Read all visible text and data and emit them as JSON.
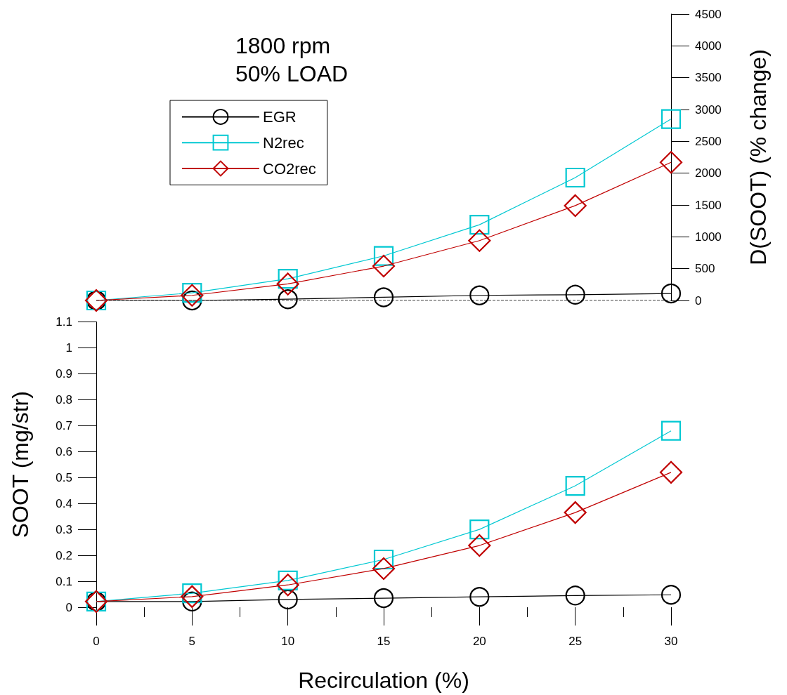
{
  "chart_data": [
    {
      "type": "line",
      "title": "1800 rpm\n50% LOAD",
      "y2label": "D(SOOT) (% change)",
      "xlim": [
        0,
        30
      ],
      "y2lim": [
        0,
        4500
      ],
      "y2ticks": [
        0,
        500,
        1000,
        1500,
        2000,
        2500,
        3000,
        3500,
        4000,
        4500
      ],
      "tick_labels": "y2",
      "legend": "top left",
      "grid": false,
      "ref_lines": [
        {
          "axis": "y2",
          "value": 0,
          "line_style": "dashed",
          "color": "#000000"
        }
      ],
      "series": [
        {
          "name": "EGR",
          "color": "#000000",
          "marker": "circle",
          "axis": "y2",
          "x": [
            0,
            5,
            10,
            15,
            20,
            25,
            30
          ],
          "values": [
            0,
            0,
            20,
            50,
            80,
            90,
            110
          ]
        },
        {
          "name": "N2rec",
          "color": "#00c8d2",
          "marker": "square",
          "axis": "y2",
          "x": [
            0,
            5,
            10,
            15,
            20,
            25,
            30
          ],
          "values": [
            0,
            120,
            340,
            700,
            1190,
            1930,
            2850
          ]
        },
        {
          "name": "CO2rec",
          "color": "#c00000",
          "marker": "diamond",
          "axis": "y2",
          "x": [
            0,
            5,
            10,
            15,
            20,
            25,
            30
          ],
          "values": [
            0,
            80,
            260,
            540,
            940,
            1490,
            2170
          ]
        }
      ]
    },
    {
      "type": "line",
      "xlabel": "Recirculation (%)",
      "ylabel": "SOOT (mg/str)",
      "xlim": [
        0,
        30
      ],
      "xticks": [
        0,
        {
          "value": 2.5,
          "label": null
        },
        5,
        {
          "value": 7.5,
          "label": null
        },
        10,
        {
          "value": 12.5,
          "label": null
        },
        15,
        {
          "value": 17.5,
          "label": null
        },
        20,
        {
          "value": 22.5,
          "label": null
        },
        25,
        {
          "value": 27.5,
          "label": null
        },
        30
      ],
      "ylim": [
        0,
        1.1
      ],
      "yticks": [
        0,
        0.1,
        0.2,
        0.3,
        0.4,
        0.5,
        0.6,
        0.7,
        0.8,
        0.9,
        1,
        1.1
      ],
      "grid": false,
      "series": [
        {
          "color": "#000000",
          "marker": "circle",
          "x": [
            0,
            5,
            10,
            15,
            20,
            25,
            30
          ],
          "values": [
            0.022,
            0.022,
            0.03,
            0.035,
            0.04,
            0.045,
            0.048
          ]
        },
        {
          "color": "#00c8d2",
          "marker": "square",
          "x": [
            0,
            5,
            10,
            15,
            20,
            25,
            30
          ],
          "values": [
            0.022,
            0.054,
            0.103,
            0.184,
            0.3,
            0.468,
            0.68
          ]
        },
        {
          "color": "#c00000",
          "marker": "diamond",
          "x": [
            0,
            5,
            10,
            15,
            20,
            25,
            30
          ],
          "values": [
            0.022,
            0.041,
            0.086,
            0.149,
            0.238,
            0.365,
            0.52
          ]
        }
      ]
    }
  ]
}
